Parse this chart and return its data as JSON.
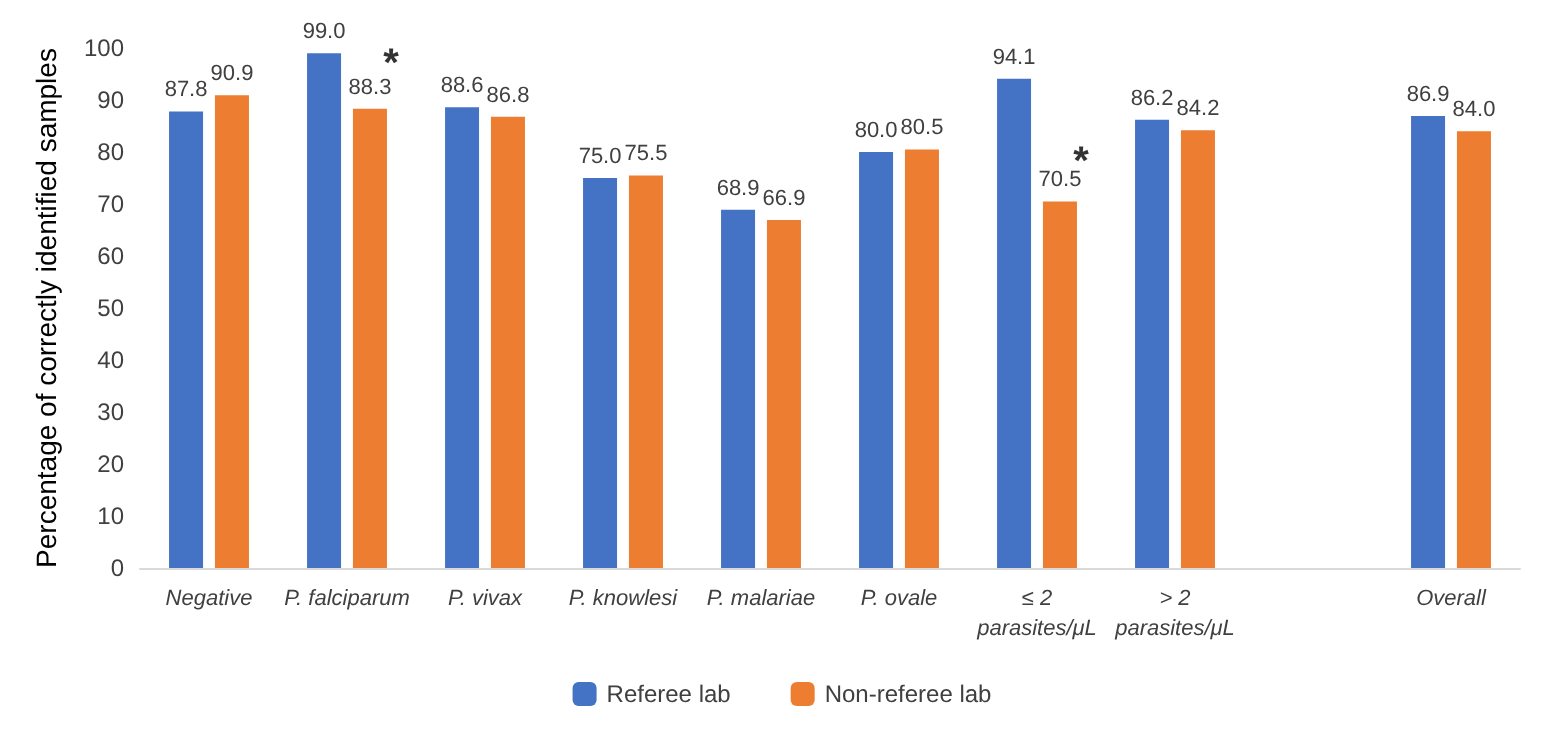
{
  "chart_data": {
    "type": "bar",
    "ylabel": "Percentage of correctly identified samples",
    "categories": [
      "Negative",
      "P. falciparum",
      "P. vivax",
      "P. knowlesi",
      "P. malariae",
      "P. ovale",
      "≤ 2\nparasites/μL",
      "> 2\nparasites/μL",
      null,
      "Overall"
    ],
    "series": [
      {
        "name": "Referee lab",
        "color": "#4472c4",
        "values": [
          87.8,
          99.0,
          88.6,
          75.0,
          68.9,
          80.0,
          94.1,
          86.2,
          null,
          86.9
        ],
        "value_labels": [
          "87.8",
          "99.0",
          "88.6",
          "75.0",
          "68.9",
          "80.0",
          "94.1",
          "86.2",
          null,
          "86.9"
        ]
      },
      {
        "name": "Non-referee lab",
        "color": "#ed7d31",
        "values": [
          90.9,
          88.3,
          86.8,
          75.5,
          66.9,
          80.5,
          70.5,
          84.2,
          null,
          84.0
        ],
        "value_labels": [
          "90.9",
          "88.3",
          "86.8",
          "75.5",
          "66.9",
          "80.5",
          "70.5",
          "84.2",
          null,
          "84.0"
        ]
      }
    ],
    "ylim": [
      0,
      100
    ],
    "yticks": [
      0,
      10,
      20,
      30,
      40,
      50,
      60,
      70,
      80,
      90,
      100
    ],
    "annotations": [
      {
        "text": "*",
        "x": "P. falciparum",
        "y": 97
      },
      {
        "text": "*",
        "x": "≤ 2\nparasites/μL",
        "y": 78
      }
    ],
    "grid": false,
    "legend": "bottom"
  }
}
